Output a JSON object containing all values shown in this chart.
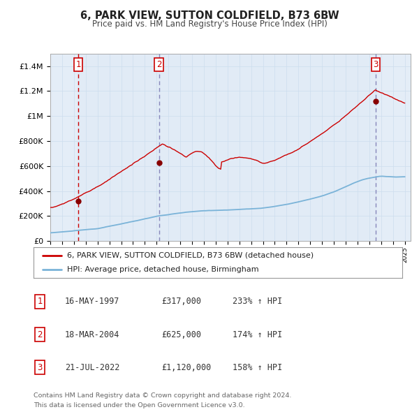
{
  "title": "6, PARK VIEW, SUTTON COLDFIELD, B73 6BW",
  "subtitle": "Price paid vs. HM Land Registry's House Price Index (HPI)",
  "sale_dates_num": [
    1997.37,
    2004.21,
    2022.54
  ],
  "sale_prices": [
    317000,
    625000,
    1120000
  ],
  "sale_labels": [
    "1",
    "2",
    "3"
  ],
  "hpi_color": "#7ab3d8",
  "sale_color": "#cc0000",
  "vline_color_1": "#cc0000",
  "vline_color_23": "#8888bb",
  "shade_color": "#dce8f5",
  "legend_sale": "6, PARK VIEW, SUTTON COLDFIELD, B73 6BW (detached house)",
  "legend_hpi": "HPI: Average price, detached house, Birmingham",
  "table": [
    [
      "1",
      "16-MAY-1997",
      "£317,000",
      "233% ↑ HPI"
    ],
    [
      "2",
      "18-MAR-2004",
      "£625,000",
      "174% ↑ HPI"
    ],
    [
      "3",
      "21-JUL-2022",
      "£1,120,000",
      "158% ↑ HPI"
    ]
  ],
  "footnote1": "Contains HM Land Registry data © Crown copyright and database right 2024.",
  "footnote2": "This data is licensed under the Open Government Licence v3.0.",
  "ylim": [
    0,
    1500000
  ],
  "xlim_start": 1995.0,
  "xlim_end": 2025.5,
  "background_color": "#ffffff",
  "grid_color": "#ccddee",
  "axis_bg_color": "#eef4fb"
}
